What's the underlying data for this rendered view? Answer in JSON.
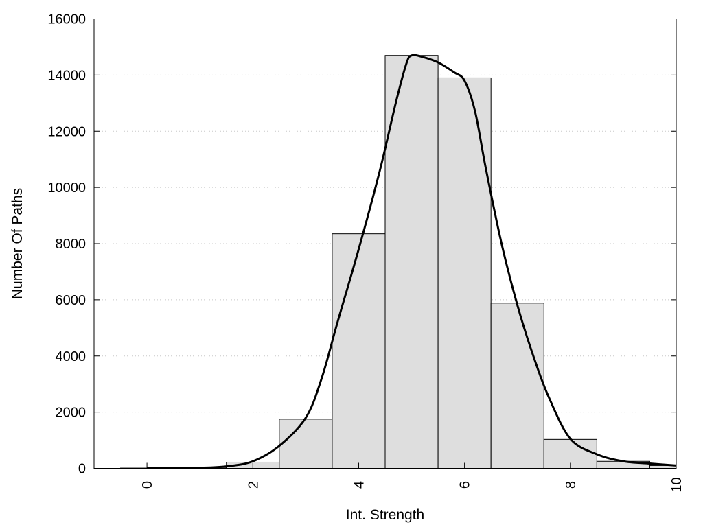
{
  "chart_data": {
    "type": "bar",
    "xlabel": "Int. Strength",
    "ylabel": "Number Of Paths",
    "xlim": [
      -1,
      10
    ],
    "ylim": [
      0,
      16000
    ],
    "x_ticks": [
      0,
      2,
      4,
      6,
      8,
      10
    ],
    "y_ticks": [
      0,
      2000,
      4000,
      6000,
      8000,
      10000,
      12000,
      14000,
      16000
    ],
    "grid": "horizontal dotted",
    "bin_width": 1,
    "bars": [
      {
        "x": 0,
        "value": 10
      },
      {
        "x": 1,
        "value": 30
      },
      {
        "x": 2,
        "value": 220
      },
      {
        "x": 3,
        "value": 1750
      },
      {
        "x": 4,
        "value": 8350
      },
      {
        "x": 5,
        "value": 14700
      },
      {
        "x": 6,
        "value": 13900
      },
      {
        "x": 7,
        "value": 5880
      },
      {
        "x": 8,
        "value": 1030
      },
      {
        "x": 9,
        "value": 250
      },
      {
        "x": 10,
        "value": 100
      }
    ],
    "curve": {
      "x": [
        0,
        1,
        1.5,
        2,
        2.5,
        3,
        3.3,
        3.6,
        4,
        4.4,
        4.7,
        4.9,
        5,
        5.2,
        5.5,
        5.8,
        6,
        6.2,
        6.4,
        6.7,
        7,
        7.3,
        7.6,
        8,
        8.5,
        9,
        9.5,
        10
      ],
      "y": [
        0,
        20,
        70,
        250,
        800,
        1800,
        3200,
        5200,
        7800,
        10600,
        13000,
        14400,
        14700,
        14650,
        14450,
        14100,
        13800,
        12700,
        10700,
        8000,
        5800,
        4000,
        2500,
        1050,
        500,
        250,
        170,
        100
      ]
    },
    "colors": {
      "bar_fill": "#dedede",
      "bar_stroke": "#000000",
      "curve": "#000000"
    }
  }
}
